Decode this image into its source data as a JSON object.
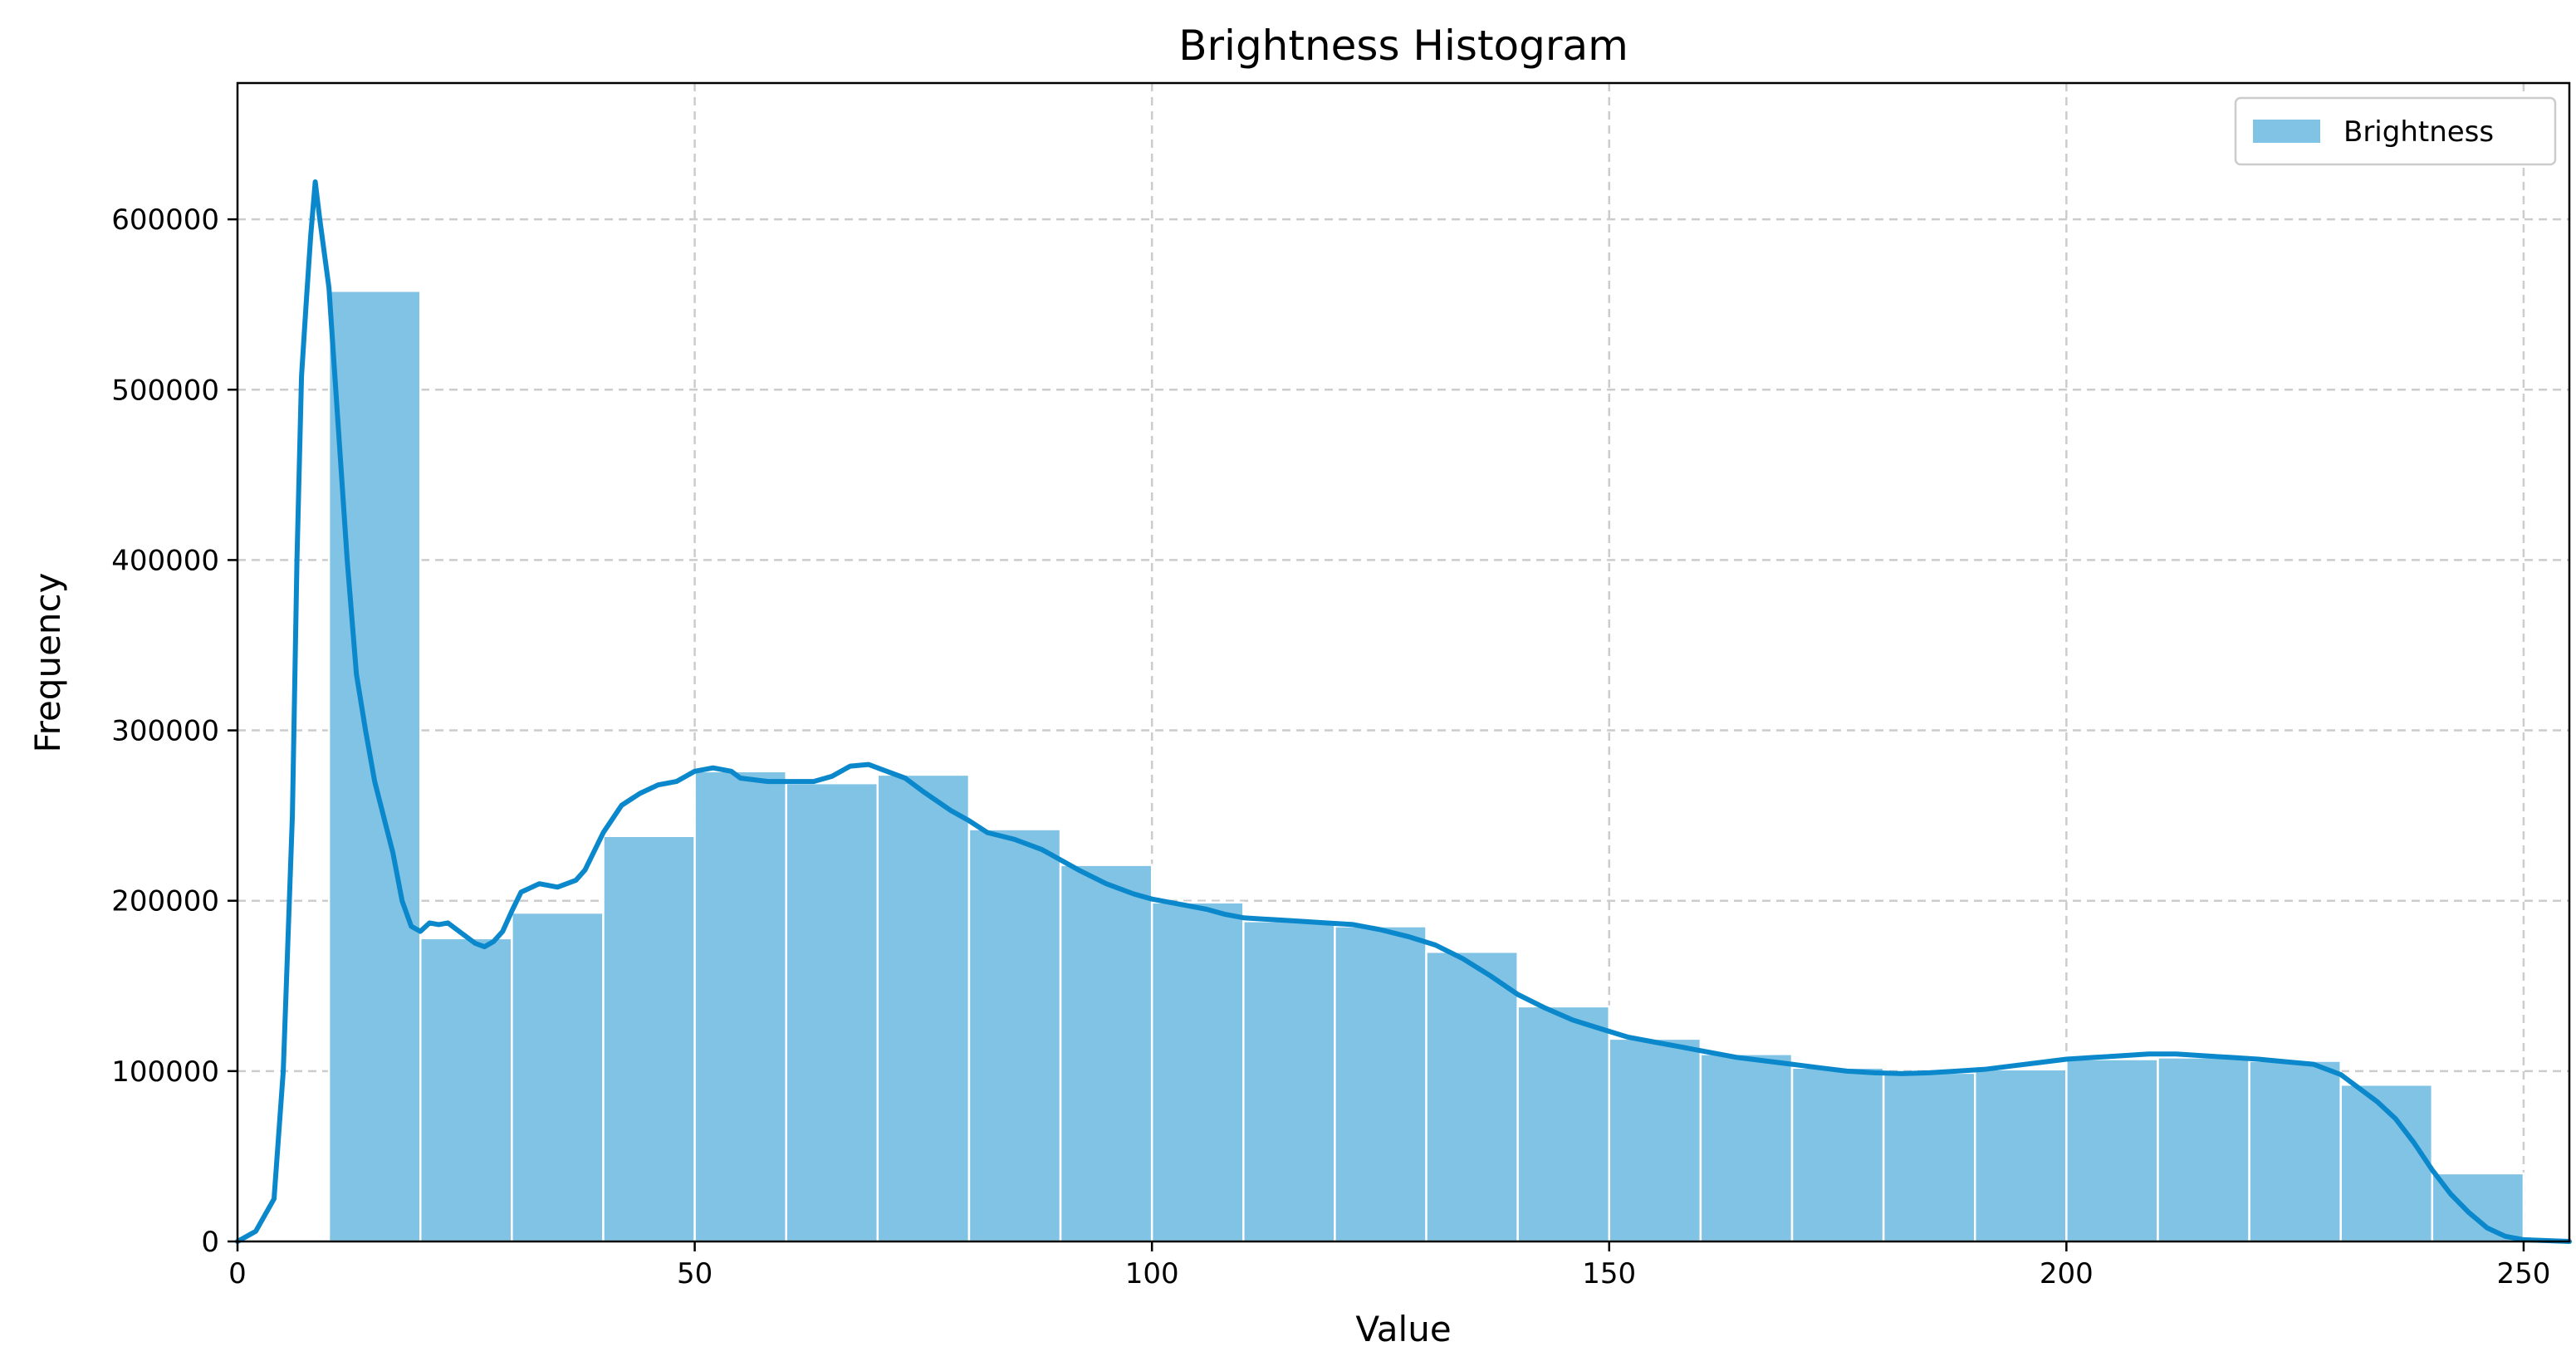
{
  "chart_data": {
    "type": "bar",
    "title": "Brightness Histogram",
    "xlabel": "Value",
    "ylabel": "Frequency",
    "xlim": [
      0,
      255
    ],
    "ylim": [
      0,
      680000
    ],
    "xticks": [
      0,
      50,
      100,
      150,
      200,
      250
    ],
    "yticks": [
      0,
      100000,
      200000,
      300000,
      400000,
      500000,
      600000
    ],
    "grid": true,
    "legend": {
      "placement": "top-right",
      "entries": [
        "Brightness"
      ]
    },
    "colors": {
      "bars": "#80c3e4",
      "kde_line": "#0a88cb",
      "bar_edge": "#ffffff",
      "grid": "#cccccc"
    },
    "series": [
      {
        "name": "Brightness",
        "bins": [
          {
            "x0": 10,
            "x1": 20,
            "value": 558000
          },
          {
            "x0": 20,
            "x1": 30,
            "value": 178000
          },
          {
            "x0": 30,
            "x1": 40,
            "value": 193000
          },
          {
            "x0": 40,
            "x1": 50,
            "value": 238000
          },
          {
            "x0": 50,
            "x1": 60,
            "value": 276000
          },
          {
            "x0": 60,
            "x1": 70,
            "value": 269000
          },
          {
            "x0": 70,
            "x1": 80,
            "value": 274000
          },
          {
            "x0": 80,
            "x1": 90,
            "value": 242000
          },
          {
            "x0": 90,
            "x1": 100,
            "value": 221000
          },
          {
            "x0": 100,
            "x1": 110,
            "value": 199000
          },
          {
            "x0": 110,
            "x1": 120,
            "value": 188000
          },
          {
            "x0": 120,
            "x1": 130,
            "value": 185000
          },
          {
            "x0": 130,
            "x1": 140,
            "value": 170000
          },
          {
            "x0": 140,
            "x1": 150,
            "value": 138000
          },
          {
            "x0": 150,
            "x1": 160,
            "value": 119000
          },
          {
            "x0": 160,
            "x1": 170,
            "value": 110000
          },
          {
            "x0": 170,
            "x1": 180,
            "value": 102000
          },
          {
            "x0": 180,
            "x1": 190,
            "value": 99000
          },
          {
            "x0": 190,
            "x1": 200,
            "value": 101000
          },
          {
            "x0": 200,
            "x1": 210,
            "value": 107000
          },
          {
            "x0": 210,
            "x1": 220,
            "value": 108000
          },
          {
            "x0": 220,
            "x1": 230,
            "value": 106000
          },
          {
            "x0": 230,
            "x1": 240,
            "value": 92000
          },
          {
            "x0": 240,
            "x1": 250,
            "value": 40000
          }
        ]
      },
      {
        "kind": "kde-line",
        "points": [
          [
            0,
            0
          ],
          [
            2,
            6000
          ],
          [
            4,
            25000
          ],
          [
            5,
            100000
          ],
          [
            6,
            250000
          ],
          [
            6.5,
            400000
          ],
          [
            7,
            508000
          ],
          [
            7.5,
            550000
          ],
          [
            8,
            590000
          ],
          [
            8.5,
            622000
          ],
          [
            9,
            600000
          ],
          [
            10,
            560000
          ],
          [
            11,
            480000
          ],
          [
            12,
            400000
          ],
          [
            13,
            333000
          ],
          [
            14,
            300000
          ],
          [
            15,
            270000
          ],
          [
            17,
            228000
          ],
          [
            18,
            200000
          ],
          [
            19,
            185000
          ],
          [
            20,
            182000
          ],
          [
            21,
            187000
          ],
          [
            22,
            186000
          ],
          [
            23,
            187000
          ],
          [
            24,
            183000
          ],
          [
            26,
            175000
          ],
          [
            27,
            173000
          ],
          [
            28,
            176000
          ],
          [
            29,
            182000
          ],
          [
            30,
            194000
          ],
          [
            31,
            205000
          ],
          [
            33,
            210000
          ],
          [
            35,
            208000
          ],
          [
            37,
            212000
          ],
          [
            38,
            218000
          ],
          [
            40,
            240000
          ],
          [
            42,
            256000
          ],
          [
            44,
            263000
          ],
          [
            46,
            268000
          ],
          [
            48,
            270000
          ],
          [
            50,
            276000
          ],
          [
            52,
            278000
          ],
          [
            54,
            276000
          ],
          [
            55,
            272000
          ],
          [
            58,
            270000
          ],
          [
            60,
            270000
          ],
          [
            63,
            270000
          ],
          [
            65,
            273000
          ],
          [
            67,
            279000
          ],
          [
            69,
            280000
          ],
          [
            71,
            276000
          ],
          [
            73,
            272000
          ],
          [
            75,
            264000
          ],
          [
            78,
            253000
          ],
          [
            80,
            247000
          ],
          [
            82,
            240000
          ],
          [
            85,
            236000
          ],
          [
            88,
            230000
          ],
          [
            90,
            224000
          ],
          [
            92,
            218000
          ],
          [
            95,
            210000
          ],
          [
            98,
            204000
          ],
          [
            100,
            201000
          ],
          [
            103,
            198000
          ],
          [
            106,
            195000
          ],
          [
            108,
            192000
          ],
          [
            110,
            190000
          ],
          [
            113,
            189000
          ],
          [
            116,
            188000
          ],
          [
            119,
            187000
          ],
          [
            122,
            186000
          ],
          [
            125,
            183000
          ],
          [
            128,
            179000
          ],
          [
            131,
            174000
          ],
          [
            134,
            166000
          ],
          [
            137,
            156000
          ],
          [
            140,
            145000
          ],
          [
            143,
            137000
          ],
          [
            146,
            130000
          ],
          [
            149,
            125000
          ],
          [
            152,
            120000
          ],
          [
            155,
            117000
          ],
          [
            158,
            114000
          ],
          [
            161,
            111000
          ],
          [
            164,
            108000
          ],
          [
            167,
            106000
          ],
          [
            170,
            104000
          ],
          [
            173,
            102000
          ],
          [
            176,
            100000
          ],
          [
            179,
            99000
          ],
          [
            182,
            98500
          ],
          [
            185,
            99000
          ],
          [
            188,
            100000
          ],
          [
            191,
            101000
          ],
          [
            194,
            103000
          ],
          [
            197,
            105000
          ],
          [
            200,
            107000
          ],
          [
            203,
            108000
          ],
          [
            206,
            109000
          ],
          [
            209,
            110000
          ],
          [
            212,
            110000
          ],
          [
            215,
            109000
          ],
          [
            218,
            108000
          ],
          [
            221,
            107000
          ],
          [
            224,
            105500
          ],
          [
            227,
            104000
          ],
          [
            230,
            98000
          ],
          [
            232,
            90000
          ],
          [
            234,
            82000
          ],
          [
            236,
            72000
          ],
          [
            238,
            58000
          ],
          [
            240,
            42000
          ],
          [
            242,
            28000
          ],
          [
            244,
            17000
          ],
          [
            246,
            8000
          ],
          [
            248,
            3000
          ],
          [
            250,
            1000
          ],
          [
            255,
            0
          ]
        ]
      }
    ]
  }
}
